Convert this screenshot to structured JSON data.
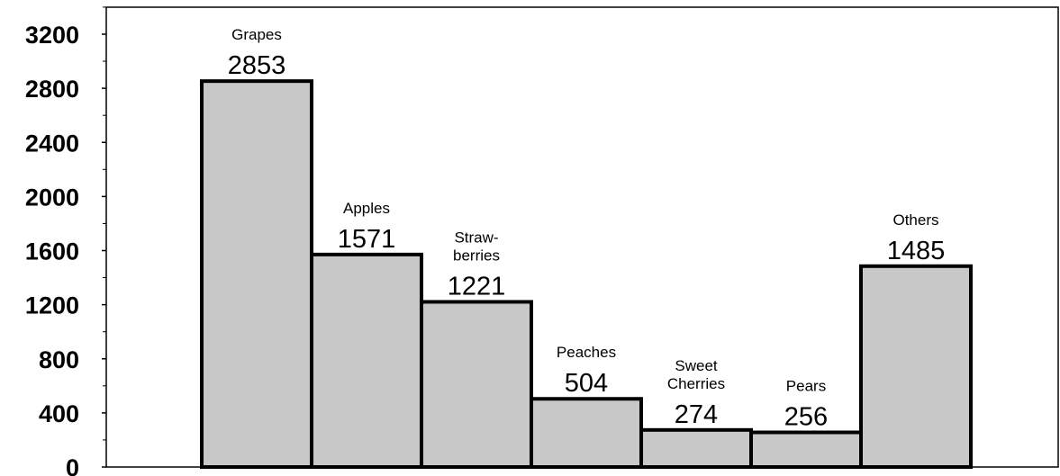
{
  "chart_data": {
    "type": "bar",
    "categories": [
      [
        "Grapes"
      ],
      [
        "Apples"
      ],
      [
        "Straw-",
        "berries"
      ],
      [
        "Peaches"
      ],
      [
        "Sweet",
        "Cherries"
      ],
      [
        "Pears"
      ],
      [
        "Others"
      ]
    ],
    "values": [
      2853,
      1571,
      1221,
      504,
      274,
      256,
      1485
    ],
    "value_labels": [
      "2853",
      "1571",
      "1221",
      "504",
      "274",
      "256",
      "1485"
    ],
    "title": "",
    "xlabel": "",
    "ylabel": "",
    "ylim": [
      0,
      3400
    ],
    "yticks": [
      0,
      400,
      800,
      1200,
      1600,
      2000,
      2400,
      2800,
      3200
    ],
    "grid": false,
    "legend": "none",
    "colors": {
      "bar_fill": "#c8c8c8",
      "bar_stroke": "#000000",
      "axis": "#000000"
    }
  }
}
